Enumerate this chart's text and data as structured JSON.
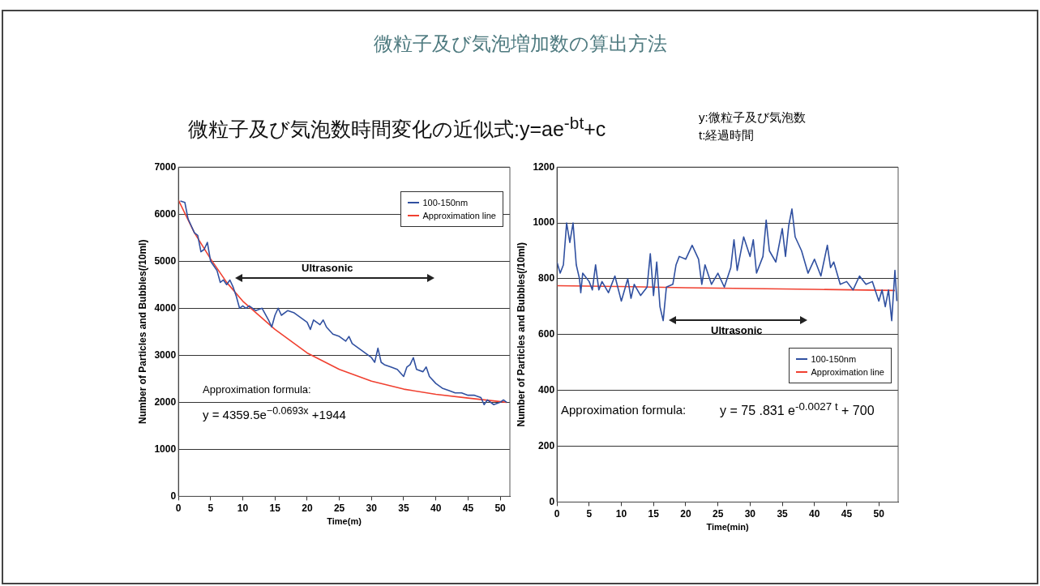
{
  "chart_data": [
    {
      "type": "line",
      "title": "微粒子及び気泡増加数の算出方法",
      "subtitle": "微粒子及び気泡数時間変化の近似式:y=ae$^{-bt}$+c",
      "xlabel": "Time(m)",
      "ylabel": "Number of Particles and Bubbles(/10ml)",
      "annotations": [
        "y:微粒子及び気泡数",
        "t:経過時間",
        "Ultrasonic",
        "Approximation formula:",
        "y = 4359.5e$^{−0.0693x}$ +1944"
      ],
      "xlim": [
        0,
        51.5
      ],
      "xticks": [
        0,
        5,
        10,
        15,
        20,
        25,
        30,
        35,
        40,
        45,
        50
      ],
      "ylim": [
        0,
        7000
      ],
      "yticks": [
        0,
        1000,
        2000,
        3000,
        4000,
        5000,
        6000,
        7000
      ],
      "grid": "y",
      "legend": "top right",
      "series": [
        {
          "name": "100-150nm",
          "color": "#3050a0",
          "x": [
            0.3,
            1,
            1.5,
            2,
            2.5,
            3,
            3.5,
            4,
            4.5,
            5,
            5.5,
            6,
            6.5,
            7,
            7.5,
            8,
            8.5,
            9,
            9.5,
            10,
            10.5,
            11,
            12,
            13,
            14,
            14.5,
            15,
            15.5,
            16,
            17,
            18,
            19,
            20,
            20.5,
            21,
            22,
            22.5,
            23,
            24,
            25,
            26,
            26.5,
            27,
            28,
            29,
            30,
            30.5,
            31,
            31.5,
            32,
            33,
            34,
            35,
            35.5,
            36,
            36.5,
            37,
            38,
            38.5,
            39,
            40,
            41,
            42,
            43,
            44,
            45,
            46,
            47,
            47.5,
            48,
            49,
            50,
            50.5,
            51
          ],
          "values": [
            6280,
            6250,
            5900,
            5750,
            5600,
            5550,
            5200,
            5250,
            5400,
            5000,
            4900,
            4800,
            4550,
            4600,
            4500,
            4600,
            4450,
            4250,
            4000,
            4050,
            4000,
            4050,
            3950,
            4000,
            3750,
            3600,
            3850,
            4000,
            3850,
            3950,
            3900,
            3800,
            3700,
            3550,
            3750,
            3650,
            3750,
            3600,
            3450,
            3400,
            3300,
            3400,
            3250,
            3150,
            3050,
            2950,
            2850,
            3150,
            2850,
            2800,
            2750,
            2700,
            2550,
            2750,
            2800,
            2950,
            2700,
            2650,
            2750,
            2550,
            2400,
            2300,
            2250,
            2200,
            2200,
            2150,
            2150,
            2100,
            1950,
            2050,
            1950,
            2000,
            2050,
            2000
          ]
        },
        {
          "name": "Approximation line",
          "color": "#f04030",
          "x": [
            0,
            2.5,
            5,
            7.5,
            10,
            15,
            20,
            25,
            30,
            35,
            40,
            45,
            51
          ],
          "values": [
            6300,
            5600,
            5050,
            4550,
            4150,
            3550,
            3050,
            2700,
            2450,
            2280,
            2170,
            2090,
            2000
          ]
        }
      ]
    },
    {
      "type": "line",
      "xlabel": "Time(min)",
      "ylabel": "Number of Particles and Bubbles(/10ml)",
      "annotations": [
        "Ultrasonic",
        "Approximation formula:",
        "y = 75 .831 e$^{-0.0027 t}$ + 700"
      ],
      "xlim": [
        0,
        53
      ],
      "xticks": [
        0,
        5,
        10,
        15,
        20,
        25,
        30,
        35,
        40,
        45,
        50
      ],
      "ylim": [
        0,
        1200
      ],
      "yticks": [
        0,
        200,
        400,
        600,
        800,
        1000,
        1200
      ],
      "grid": "y",
      "legend": "right",
      "series": [
        {
          "name": "100-150nm",
          "color": "#3050a0",
          "x": [
            0,
            0.5,
            1,
            1.5,
            2,
            2.5,
            3,
            3.5,
            3.7,
            4,
            5,
            5.5,
            6,
            6.5,
            7,
            8,
            9,
            10,
            11,
            11.5,
            12,
            13,
            14,
            14.5,
            15,
            15.5,
            16,
            16.5,
            17,
            18,
            18.5,
            19,
            20,
            21,
            22,
            22.5,
            23,
            24,
            25,
            26,
            27,
            27.5,
            28,
            29,
            30,
            30.5,
            31,
            32,
            32.5,
            33,
            34,
            35,
            35.5,
            36,
            36.5,
            37,
            38,
            39,
            40,
            41,
            42,
            42.5,
            43,
            44,
            45,
            46,
            47,
            48,
            49,
            50,
            50.5,
            51,
            51.5,
            52,
            52.5,
            52.8
          ],
          "values": [
            860,
            820,
            850,
            1000,
            930,
            1000,
            850,
            800,
            750,
            820,
            790,
            760,
            850,
            760,
            790,
            750,
            810,
            720,
            800,
            730,
            780,
            740,
            770,
            890,
            740,
            860,
            700,
            650,
            770,
            780,
            850,
            880,
            870,
            920,
            870,
            780,
            850,
            780,
            820,
            770,
            840,
            940,
            830,
            950,
            880,
            940,
            820,
            880,
            1010,
            900,
            860,
            980,
            880,
            990,
            1050,
            950,
            900,
            820,
            870,
            810,
            920,
            840,
            860,
            780,
            790,
            760,
            810,
            780,
            790,
            720,
            760,
            700,
            760,
            650,
            830,
            720
          ]
        },
        {
          "name": "Approximation line",
          "color": "#f04030",
          "x": [
            0,
            10,
            20,
            30,
            40,
            52.5
          ],
          "values": [
            775,
            772,
            768,
            765,
            762,
            758
          ]
        }
      ]
    }
  ]
}
